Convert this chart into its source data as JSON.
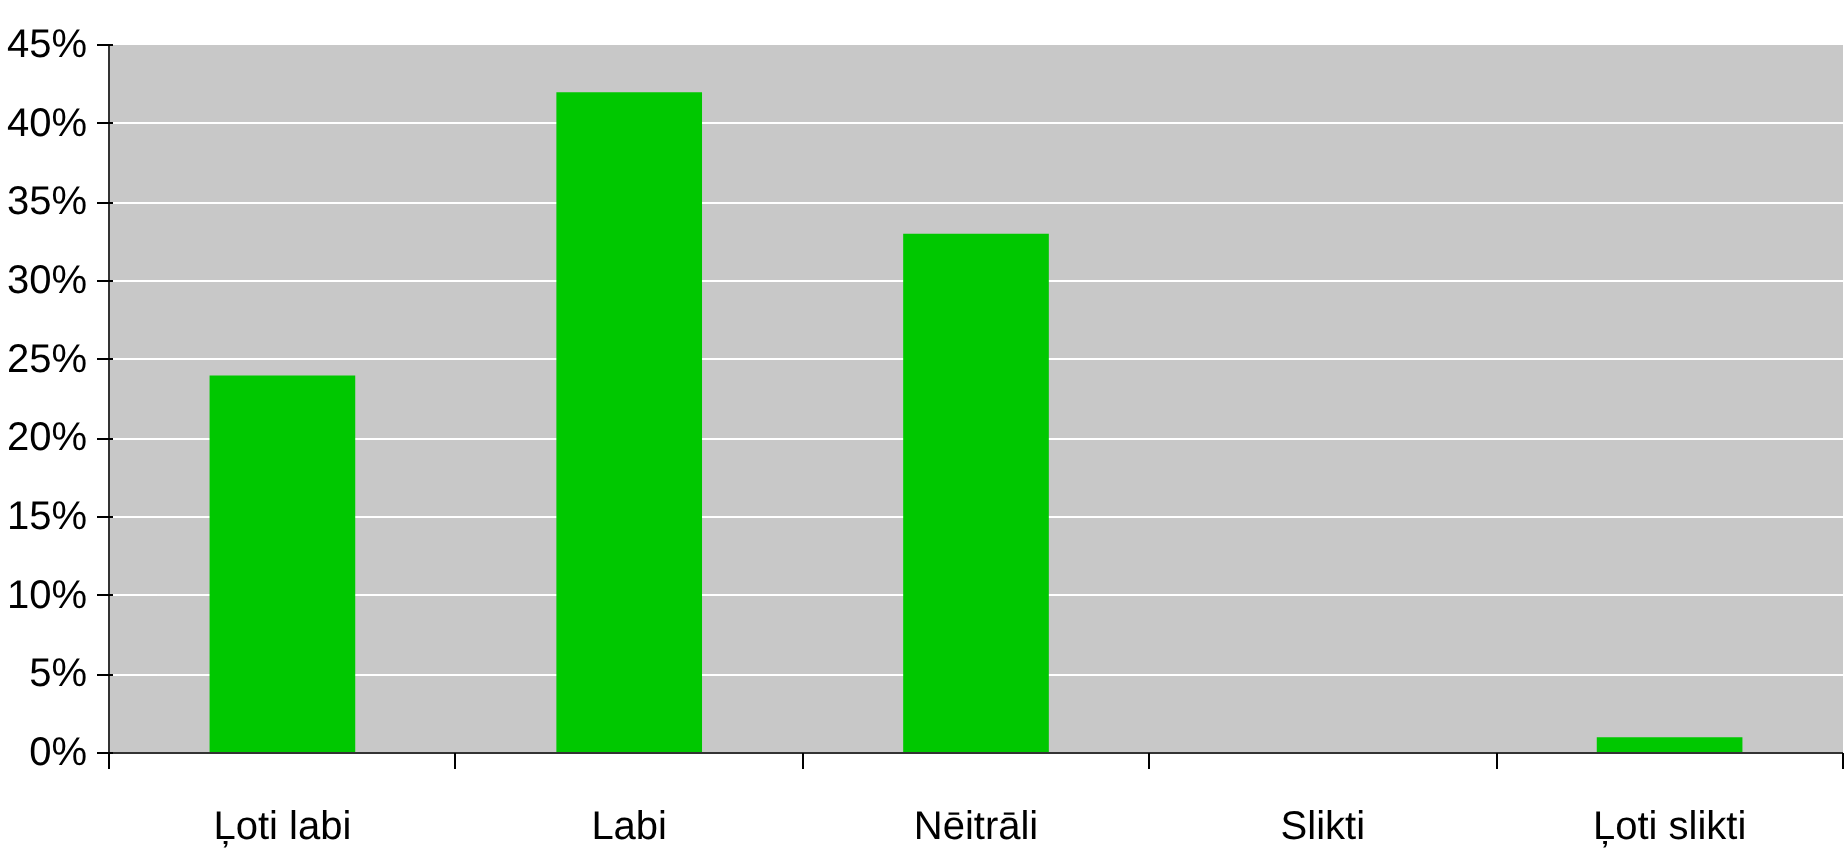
{
  "chart_data": {
    "type": "bar",
    "categories": [
      "Ļoti labi",
      "Labi",
      "Nēitrāli",
      "Slikti",
      "Ļoti slikti"
    ],
    "values": [
      24,
      42,
      33,
      0,
      1
    ],
    "color": "#00c800",
    "ylim": [
      0,
      45
    ],
    "yticks": [
      {
        "value": 0,
        "label": "0%"
      },
      {
        "value": 5,
        "label": "5%"
      },
      {
        "value": 10,
        "label": "10%"
      },
      {
        "value": 15,
        "label": "15%"
      },
      {
        "value": 20,
        "label": "20%"
      },
      {
        "value": 25,
        "label": "25%"
      },
      {
        "value": 30,
        "label": "30%"
      },
      {
        "value": 35,
        "label": "35%"
      },
      {
        "value": 40,
        "label": "40%"
      },
      {
        "value": 45,
        "label": "45%"
      }
    ],
    "grid": "y"
  }
}
